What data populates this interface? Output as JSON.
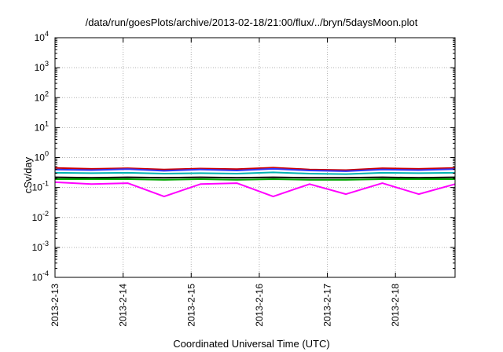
{
  "chart_data": {
    "type": "line",
    "title": "/data/run/goesPlots/archive/2013-02-18/21:00/flux/../bryn/5daysMoon.plot",
    "xlabel": "Coordinated Universal Time (UTC)",
    "ylabel": "cSv/day",
    "yscale": "log",
    "ylim": [
      0.0001,
      10000
    ],
    "xlim": [
      "2013-02-13 00:00",
      "2013-02-18 21:00"
    ],
    "grid": true,
    "y_ticks": [
      {
        "value": 0.0001,
        "mantissa": "10",
        "exp": "-4"
      },
      {
        "value": 0.001,
        "mantissa": "10",
        "exp": "-3"
      },
      {
        "value": 0.01,
        "mantissa": "10",
        "exp": "-2"
      },
      {
        "value": 0.1,
        "mantissa": "10",
        "exp": "-1"
      },
      {
        "value": 1,
        "mantissa": "10",
        "exp": "0"
      },
      {
        "value": 10,
        "mantissa": "10",
        "exp": "1"
      },
      {
        "value": 100,
        "mantissa": "10",
        "exp": "2"
      },
      {
        "value": 1000,
        "mantissa": "10",
        "exp": "3"
      },
      {
        "value": 10000,
        "mantissa": "10",
        "exp": "4"
      }
    ],
    "x_ticks": [
      "2013-2-13",
      "2013-2-14",
      "2013-2-15",
      "2013-2-16",
      "2013-2-17",
      "2013-2-18"
    ],
    "series": [
      {
        "color": "#cc0000",
        "values": [
          0.45,
          0.42,
          0.44,
          0.4,
          0.43,
          0.41,
          0.46,
          0.4,
          0.38,
          0.44,
          0.42,
          0.45
        ]
      },
      {
        "color": "#3333ff",
        "values": [
          0.4,
          0.38,
          0.41,
          0.36,
          0.4,
          0.37,
          0.42,
          0.37,
          0.35,
          0.4,
          0.38,
          0.41
        ]
      },
      {
        "color": "#00b3b3",
        "values": [
          0.31,
          0.3,
          0.31,
          0.29,
          0.3,
          0.29,
          0.32,
          0.29,
          0.28,
          0.31,
          0.3,
          0.31
        ]
      },
      {
        "color": "#000000",
        "values": [
          0.22,
          0.21,
          0.22,
          0.21,
          0.22,
          0.21,
          0.22,
          0.21,
          0.21,
          0.22,
          0.21,
          0.22
        ]
      },
      {
        "color": "#00aa00",
        "values": [
          0.19,
          0.19,
          0.19,
          0.18,
          0.19,
          0.18,
          0.19,
          0.18,
          0.18,
          0.19,
          0.19,
          0.19
        ]
      },
      {
        "color": "#ff00ff",
        "values": [
          0.15,
          0.13,
          0.14,
          0.05,
          0.13,
          0.14,
          0.05,
          0.13,
          0.06,
          0.14,
          0.06,
          0.13
        ]
      }
    ]
  }
}
